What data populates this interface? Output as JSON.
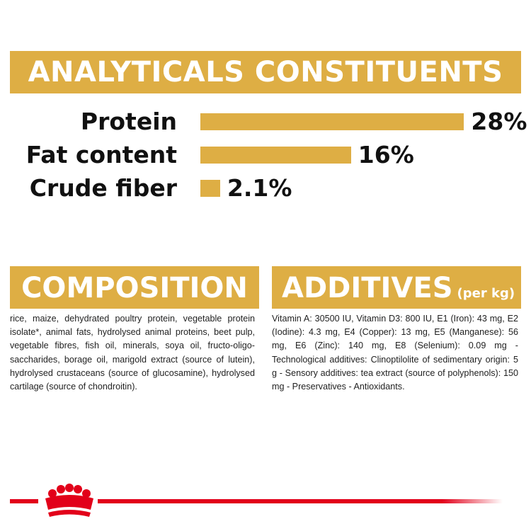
{
  "analyticals": {
    "title": "ANALYTICALS CONSTITUENTS",
    "rows": [
      {
        "label": "Protein",
        "value": 28,
        "value_label": "28%"
      },
      {
        "label": "Fat content",
        "value": 16,
        "value_label": "16%"
      },
      {
        "label": "Crude fiber",
        "value": 2.1,
        "value_label": "2.1%"
      }
    ]
  },
  "composition": {
    "title": "COMPOSITION",
    "text": "rice, maize, dehydrated poultry protein, vegetable protein isolate*, animal fats, hydrolysed animal proteins, beet pulp, vegetable fibres, fish oil, minerals, soya oil, fructo-oligo-saccharides, borage oil, marigold extract (source of lutein), hydrolysed crustaceans (source of glucosamine), hydrolysed cartilage (source of chondroitin)."
  },
  "additives": {
    "title": "ADDITIVES",
    "subtitle": "(per kg)",
    "text": "Vitamin A: 30500 IU, Vitamin D3: 800 IU, E1 (Iron): 43 mg, E2 (Iodine): 4.3 mg, E4 (Copper): 13 mg, E5 (Manganese): 56 mg, E6 (Zinc): 140 mg, E8 (Selenium): 0.09 mg - Technological additives: Clinoptilolite of sedimentary origin: 5 g - Sensory additives: tea extract (source of polyphenols): 150 mg - Preservatives - Antioxidants."
  }
}
